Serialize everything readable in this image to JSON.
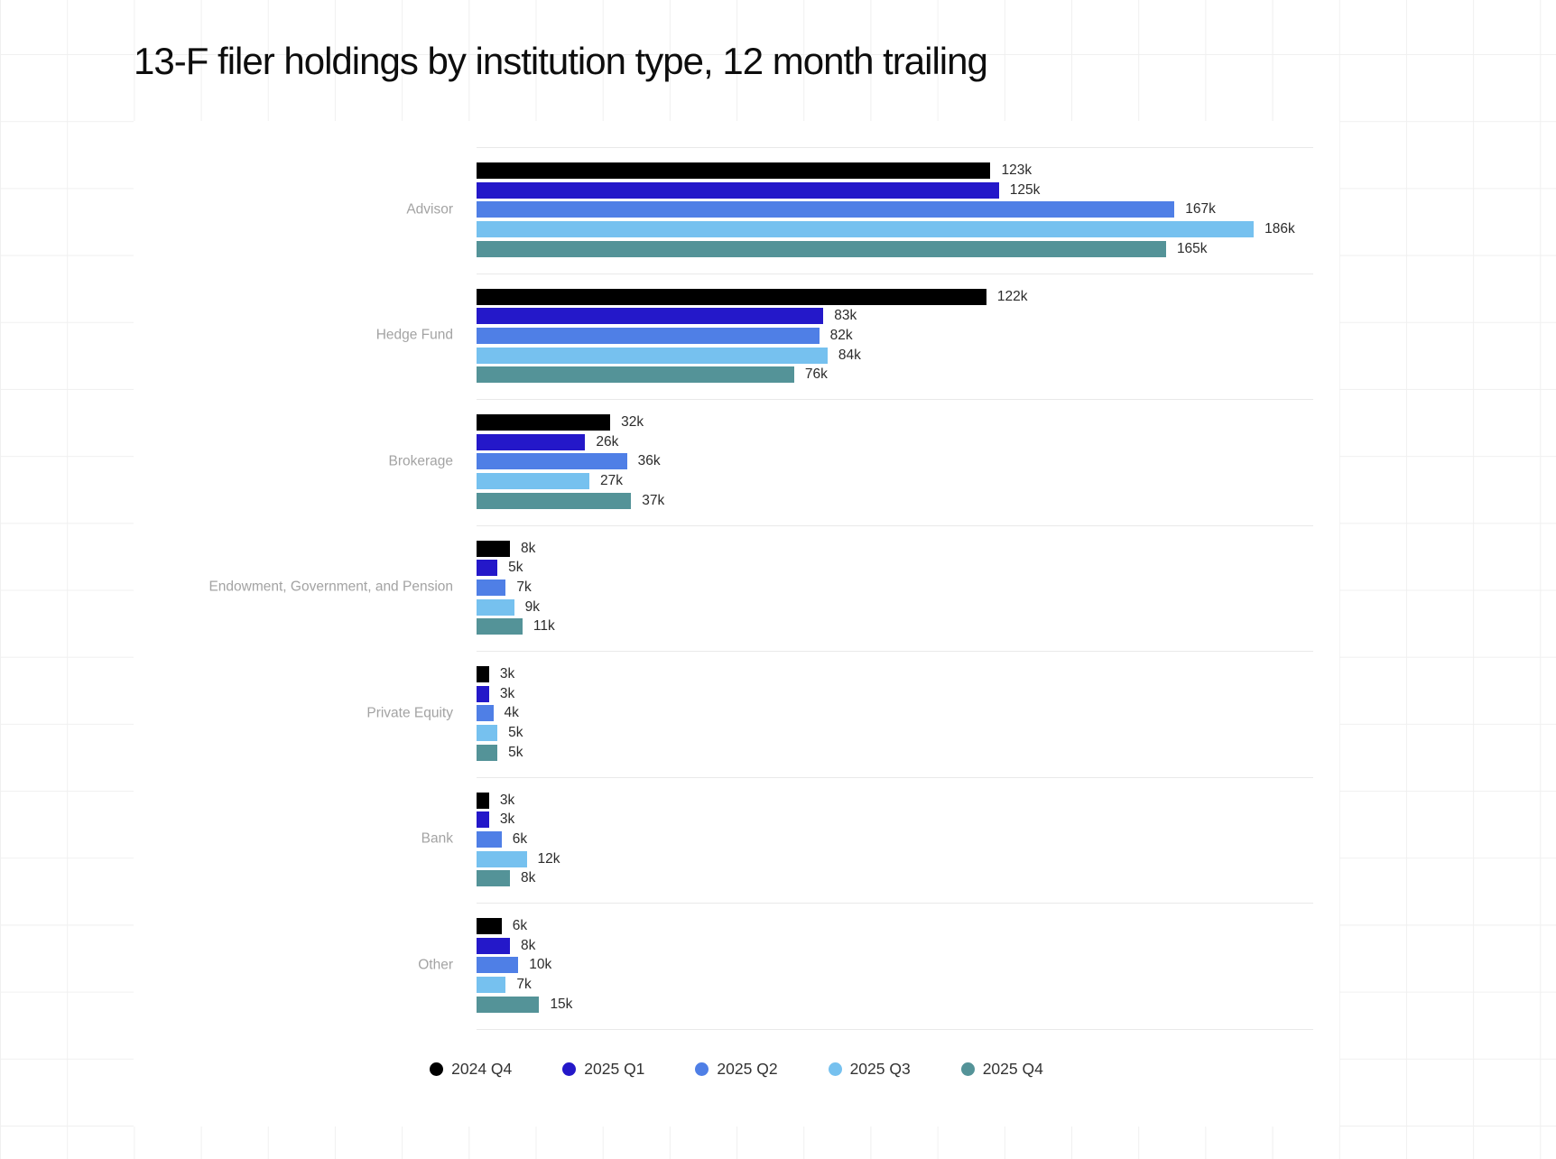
{
  "chart_data": {
    "type": "bar",
    "orientation": "horizontal",
    "title": "13-F filer holdings by institution type, 12 month trailing",
    "unit": "k",
    "value_axis_visible": false,
    "grid": "category separators only",
    "legend_position": "bottom",
    "categories": [
      "Advisor",
      "Hedge Fund",
      "Brokerage",
      "Endowment, Government, and Pension",
      "Private Equity",
      "Bank",
      "Other"
    ],
    "series": [
      {
        "name": "2024 Q4",
        "color": "#000000",
        "values": [
          123,
          122,
          32,
          8,
          3,
          3,
          6
        ],
        "labels": [
          "123k",
          "122k",
          "32k",
          "8k",
          "3k",
          "3k",
          "6k"
        ]
      },
      {
        "name": "2025 Q1",
        "color": "#2418c9",
        "values": [
          125,
          83,
          26,
          5,
          3,
          3,
          8
        ],
        "labels": [
          "125k",
          "83k",
          "26k",
          "5k",
          "3k",
          "3k",
          "8k"
        ]
      },
      {
        "name": "2025 Q2",
        "color": "#4f7fe6",
        "values": [
          167,
          82,
          36,
          7,
          4,
          6,
          10
        ],
        "labels": [
          "167k",
          "82k",
          "36k",
          "7k",
          "4k",
          "6k",
          "10k"
        ]
      },
      {
        "name": "2025 Q3",
        "color": "#76c1ef",
        "values": [
          186,
          84,
          27,
          9,
          5,
          12,
          7
        ],
        "labels": [
          "186k",
          "84k",
          "27k",
          "9k",
          "5k",
          "12k",
          "7k"
        ]
      },
      {
        "name": "2025 Q4",
        "color": "#549398",
        "values": [
          165,
          76,
          37,
          11,
          5,
          8,
          15
        ],
        "labels": [
          "165k",
          "76k",
          "37k",
          "11k",
          "5k",
          "8k",
          "15k"
        ]
      }
    ]
  }
}
